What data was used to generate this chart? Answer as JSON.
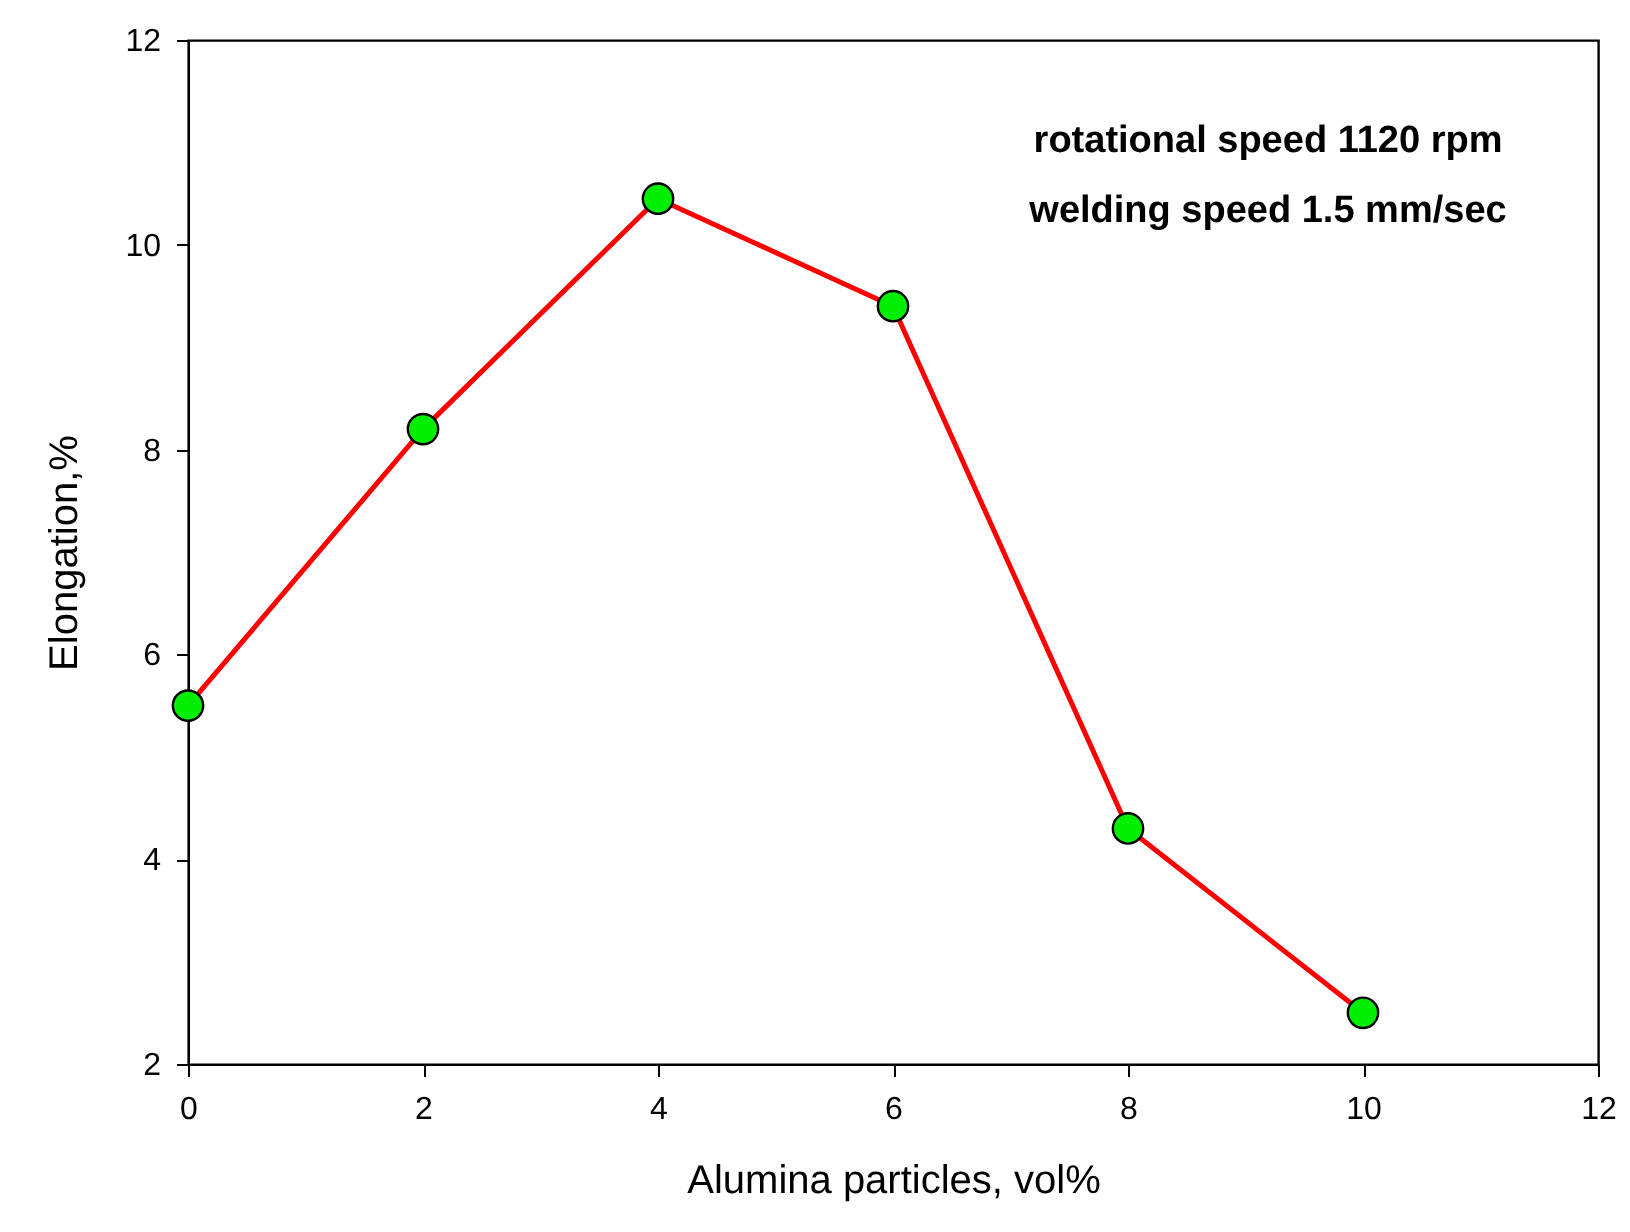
{
  "chart_data": {
    "type": "line",
    "xlabel": "Alumina particles, vol%",
    "ylabel": "Elongation,%",
    "x": [
      0,
      2,
      4,
      6,
      8,
      10
    ],
    "series": [
      {
        "color": "#ff0000",
        "values": [
          5.5,
          8.2,
          10.45,
          9.4,
          4.3,
          2.5
        ]
      }
    ],
    "marker": "circle",
    "line_style": "solid",
    "xlim": [
      0,
      12
    ],
    "xticks": [
      0,
      2,
      4,
      6,
      8,
      10,
      12
    ],
    "ylim": [
      2,
      12
    ],
    "yticks": [
      2,
      4,
      6,
      8,
      10,
      12
    ],
    "grid": false,
    "annotations": [
      "rotational speed 1120 rpm",
      "welding speed 1.5 mm/sec"
    ]
  }
}
